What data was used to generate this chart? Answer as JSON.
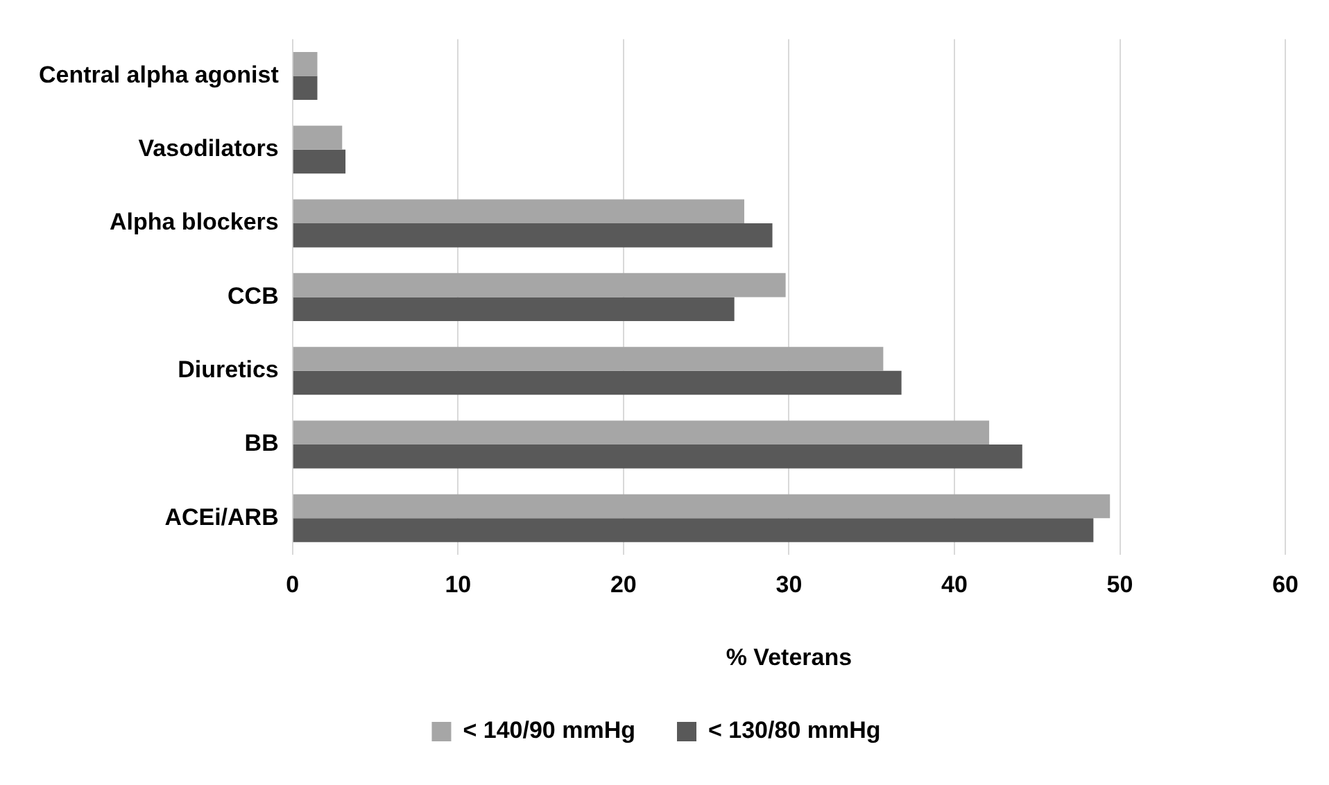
{
  "chart_data": {
    "type": "bar",
    "orientation": "horizontal",
    "xlabel": "% Veterans",
    "categories": [
      "Central alpha agonist",
      "Vasodilators",
      "Alpha blockers",
      "CCB",
      "Diuretics",
      "BB",
      "ACEi/ARB"
    ],
    "series": [
      {
        "name": "< 140/90 mmHg",
        "color": "#a6a6a6",
        "values": [
          1.5,
          3.0,
          27.3,
          29.8,
          35.7,
          42.1,
          49.4
        ]
      },
      {
        "name": "< 130/80 mmHg",
        "color": "#595959",
        "values": [
          1.5,
          3.2,
          29.0,
          26.7,
          36.8,
          44.1,
          48.4
        ]
      }
    ],
    "xlim": [
      0,
      60
    ],
    "xticks": [
      0,
      10,
      20,
      30,
      40,
      50,
      60
    ],
    "grid": "x",
    "legend": "bottom"
  }
}
